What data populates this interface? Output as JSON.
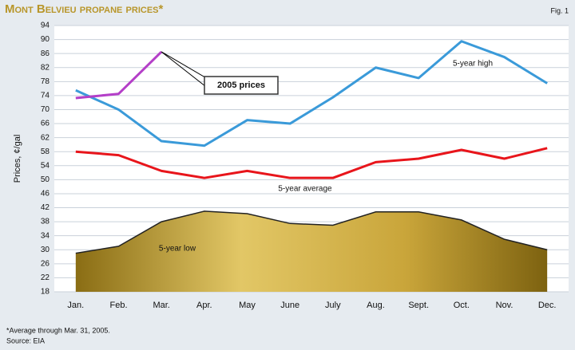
{
  "chart_data": {
    "type": "line",
    "title": "Mont Belvieu propane prices*",
    "figure_label": "Fig. 1",
    "y_label": "Prices, ¢/gal",
    "footnote": "*Average through Mar. 31, 2005.",
    "source": "Source: EIA",
    "categories": [
      "Jan.",
      "Feb.",
      "Mar.",
      "Apr.",
      "May",
      "June",
      "July",
      "Aug.",
      "Sept.",
      "Oct.",
      "Nov.",
      "Dec."
    ],
    "series": [
      {
        "name": "5-year low",
        "color": "#b8962a",
        "fill": "area",
        "values": [
          29,
          31,
          38,
          41,
          40.3,
          37.5,
          37,
          40.8,
          40.8,
          38.5,
          33,
          30
        ]
      },
      {
        "name": "5-year average",
        "color": "#e8151b",
        "values": [
          58,
          57,
          52.5,
          50.5,
          52.5,
          50.5,
          50.5,
          55,
          56,
          58.5,
          56,
          59
        ]
      },
      {
        "name": "5-year high",
        "color": "#3a9ad9",
        "values": [
          75.5,
          70,
          61,
          59.7,
          67,
          66,
          73.5,
          82,
          79,
          89.5,
          85,
          77.5
        ]
      },
      {
        "name": "2005 prices",
        "color": "#b43fc8",
        "values": [
          73.3,
          74.5,
          86.5,
          null,
          null,
          null,
          null,
          null,
          null,
          null,
          null,
          null
        ]
      }
    ],
    "ylim": [
      18,
      94
    ],
    "yticks": [
      18,
      22,
      26,
      30,
      34,
      38,
      42,
      46,
      50,
      54,
      58,
      62,
      66,
      70,
      74,
      78,
      82,
      86,
      90,
      94
    ],
    "grid": true
  }
}
